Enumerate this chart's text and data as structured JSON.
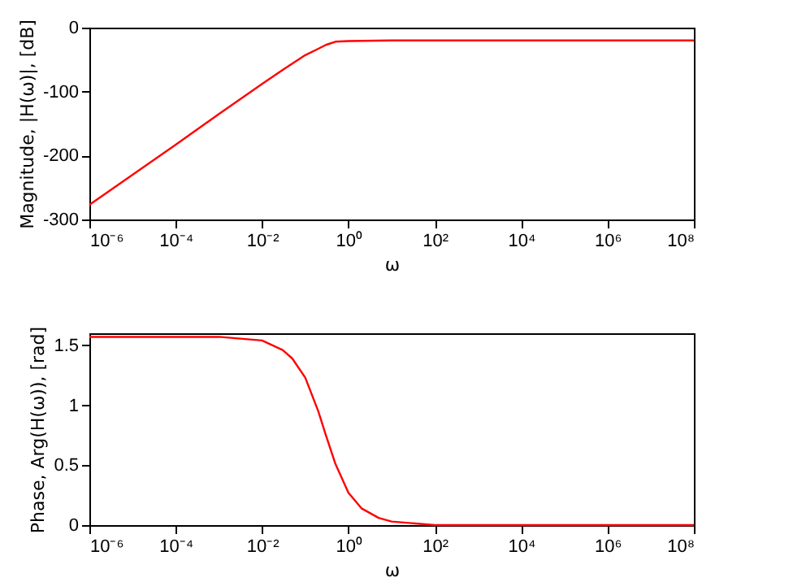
{
  "chart_data": [
    {
      "type": "line",
      "xlabel": "ω",
      "ylabel": "Magnitude, |H(ω)|, [dB]",
      "log": "x",
      "grid": false,
      "line_style": "solid",
      "x": [
        1e-06,
        1e-05,
        0.0001,
        0.001,
        0.01,
        0.03,
        0.1,
        0.2,
        0.3,
        0.5,
        1,
        10,
        100,
        100000000.0
      ],
      "series": [
        {
          "color": "#ff0000",
          "values": [
            -277,
            -230,
            -183,
            -135,
            -88,
            -66,
            -43,
            -33,
            -27,
            -22,
            -21,
            -20,
            -20,
            -20
          ]
        }
      ],
      "xlim": [
        1e-06,
        100000000.0
      ],
      "ylim": [
        -300,
        0
      ],
      "yticks": [
        -300,
        -200,
        -100,
        0
      ],
      "xticks": [
        {
          "value": 1e-06,
          "label": "10⁻⁶"
        },
        {
          "value": 0.0001,
          "label": "10⁻⁴"
        },
        {
          "value": 0.01,
          "label": "10⁻²"
        },
        {
          "value": 1,
          "label": "10⁰"
        },
        {
          "value": 100,
          "label": "10²"
        },
        {
          "value": 10000.0,
          "label": "10⁴"
        },
        {
          "value": 1000000.0,
          "label": "10⁶"
        },
        {
          "value": 100000000.0,
          "label": "10⁸"
        }
      ]
    },
    {
      "type": "line",
      "xlabel": "ω",
      "ylabel": "Phase, Arg(H(ω)), [rad]",
      "log": "x",
      "grid": false,
      "line_style": "solid",
      "x": [
        1e-06,
        0.001,
        0.01,
        0.03,
        0.05,
        0.1,
        0.2,
        0.3,
        0.5,
        1,
        2,
        5,
        10,
        100,
        100000000.0
      ],
      "series": [
        {
          "color": "#ff0000",
          "values": [
            1.57,
            1.57,
            1.54,
            1.46,
            1.39,
            1.23,
            0.95,
            0.75,
            0.51,
            0.27,
            0.14,
            0.06,
            0.03,
            0,
            0
          ]
        }
      ],
      "xlim": [
        1e-06,
        100000000.0
      ],
      "ylim": [
        0,
        1.6
      ],
      "yticks": [
        0,
        0.5,
        1,
        1.5
      ],
      "xticks": [
        {
          "value": 1e-06,
          "label": "10⁻⁶"
        },
        {
          "value": 0.0001,
          "label": "10⁻⁴"
        },
        {
          "value": 0.01,
          "label": "10⁻²"
        },
        {
          "value": 1,
          "label": "10⁰"
        },
        {
          "value": 100,
          "label": "10²"
        },
        {
          "value": 10000.0,
          "label": "10⁴"
        },
        {
          "value": 1000000.0,
          "label": "10⁶"
        },
        {
          "value": 100000000.0,
          "label": "10⁸"
        }
      ]
    }
  ]
}
